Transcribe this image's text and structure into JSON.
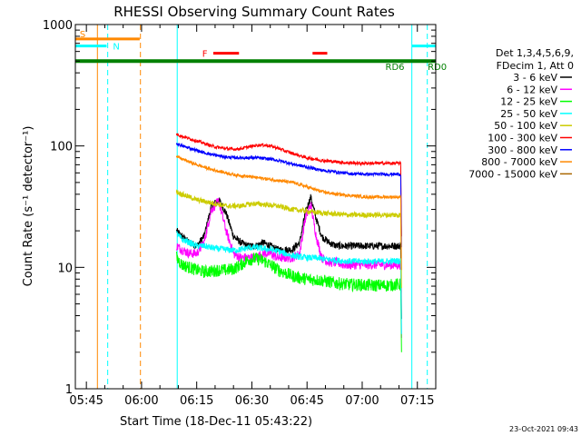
{
  "chart_data": {
    "type": "line",
    "title": "RHESSI Observing Summary Count Rates",
    "xlabel": "Start Time (18-Dec-11 05:43:22)",
    "ylabel": "Count Rate (s⁻¹ detector⁻¹)",
    "yscale": "log",
    "xlim_minutes": [
      342,
      440
    ],
    "ylim": [
      1,
      1000
    ],
    "x_ticks": [
      {
        "label": "05:45",
        "min": 345
      },
      {
        "label": "06:00",
        "min": 360
      },
      {
        "label": "06:15",
        "min": 375
      },
      {
        "label": "06:30",
        "min": 390
      },
      {
        "label": "06:45",
        "min": 405
      },
      {
        "label": "07:00",
        "min": 420
      },
      {
        "label": "07:15",
        "min": 435
      }
    ],
    "y_ticks": [
      {
        "label": "1",
        "value": 1
      },
      {
        "label": "10",
        "value": 10
      },
      {
        "label": "100",
        "value": 100
      },
      {
        "label": "1000",
        "value": 1000
      }
    ],
    "legend_title": [
      "Det 1,3,4,5,6,9,",
      "FDecim 1, Att 0"
    ],
    "legend_position": "right",
    "series": [
      {
        "name": "3 - 6 keV",
        "color": "#000000",
        "x": [
          369.5,
          371,
          373,
          375,
          377,
          379,
          381,
          383,
          385,
          387,
          389,
          391,
          393,
          395,
          397,
          399,
          401,
          403,
          404.5,
          406,
          407.5,
          409,
          411,
          413,
          415,
          417,
          419,
          421,
          423,
          425,
          427,
          429,
          430.5
        ],
        "y": [
          20,
          18,
          16,
          15,
          18,
          32,
          36,
          28,
          18,
          16,
          15,
          15,
          16,
          15,
          14,
          14,
          14,
          16,
          28,
          38,
          25,
          18,
          16,
          15,
          15,
          15,
          15,
          15,
          15,
          15,
          15,
          15,
          15
        ]
      },
      {
        "name": "6 - 12 keV",
        "color": "#ff00ff",
        "x": [
          369.5,
          371,
          373,
          375,
          377,
          379,
          381,
          383,
          385,
          387,
          389,
          391,
          393,
          395,
          397,
          399,
          401,
          403,
          404.5,
          406,
          407.5,
          409,
          411,
          413,
          415,
          417,
          419,
          421,
          423,
          425,
          427,
          429,
          430.5
        ],
        "y": [
          15,
          14,
          13,
          13,
          16,
          30,
          35,
          20,
          13,
          12,
          12,
          12,
          13,
          13,
          12,
          12,
          12,
          13,
          25,
          33,
          18,
          12,
          11,
          11,
          10.5,
          10.5,
          10.5,
          10.5,
          10.5,
          10.5,
          10.5,
          10.5,
          10.5
        ]
      },
      {
        "name": "12 - 25 keV",
        "color": "#00ff00",
        "x": [
          369.5,
          371,
          373,
          375,
          377,
          379,
          381,
          383,
          385,
          387,
          389,
          391,
          393,
          395,
          397,
          399,
          401,
          403,
          405,
          407,
          409,
          411,
          413,
          415,
          417,
          419,
          421,
          423,
          425,
          427,
          429,
          430.5
        ],
        "y": [
          12,
          10.5,
          10,
          9.5,
          9.2,
          9.3,
          9.5,
          9.5,
          9.7,
          10.5,
          11.5,
          11.8,
          11.4,
          10.5,
          9.6,
          9,
          8.5,
          8.2,
          8,
          7.9,
          7.8,
          7.6,
          7.4,
          7.3,
          7.2,
          7.2,
          7.1,
          7.1,
          7.1,
          7.1,
          7.2,
          7.2
        ]
      },
      {
        "name": "25 - 50 keV",
        "color": "#00ffff",
        "x": [
          369.5,
          371,
          373,
          375,
          377,
          379,
          381,
          383,
          385,
          387,
          389,
          391,
          393,
          395,
          397,
          399,
          401,
          403,
          405,
          407,
          409,
          411,
          413,
          415,
          417,
          419,
          421,
          423,
          425,
          427,
          429,
          430.5
        ],
        "y": [
          19,
          17,
          16,
          15,
          15,
          14.5,
          14.2,
          14,
          13.8,
          14,
          14.5,
          14.6,
          14.3,
          14,
          13.6,
          13,
          12.5,
          12.2,
          12,
          12,
          11.8,
          11.6,
          11.4,
          11.3,
          11.2,
          11.2,
          11.2,
          11.2,
          11.2,
          11.2,
          11.3,
          11.3
        ]
      },
      {
        "name": "50 - 100 keV",
        "color": "#cccc00",
        "x": [
          369.5,
          371,
          373,
          375,
          377,
          379,
          381,
          383,
          385,
          387,
          389,
          391,
          393,
          395,
          397,
          399,
          401,
          403,
          405,
          407,
          409,
          411,
          413,
          415,
          417,
          419,
          421,
          423,
          425,
          427,
          429,
          430.5
        ],
        "y": [
          42,
          40,
          38,
          36,
          35,
          34,
          33,
          32,
          32,
          32,
          33,
          33.5,
          33,
          32.5,
          32,
          31,
          30,
          29.5,
          29,
          28.5,
          28,
          27.8,
          27.5,
          27.2,
          27,
          27,
          27,
          27,
          27,
          27,
          27,
          27
        ]
      },
      {
        "name": "100 - 300 keV",
        "color": "#ff0000",
        "x": [
          369.5,
          371,
          373,
          375,
          377,
          379,
          381,
          383,
          385,
          387,
          389,
          391,
          393,
          395,
          397,
          399,
          401,
          403,
          405,
          407,
          409,
          411,
          413,
          415,
          417,
          419,
          421,
          423,
          425,
          427,
          429,
          430.5
        ],
        "y": [
          125,
          120,
          115,
          110,
          105,
          100,
          97,
          95,
          94,
          95,
          98,
          101,
          102,
          100,
          96,
          91,
          87,
          83,
          80,
          78,
          76,
          75,
          74,
          73,
          72.5,
          72,
          72,
          72,
          72,
          72,
          72,
          72
        ]
      },
      {
        "name": "300 - 800 keV",
        "color": "#0000ff",
        "x": [
          369.5,
          371,
          373,
          375,
          377,
          379,
          381,
          383,
          385,
          387,
          389,
          391,
          393,
          395,
          397,
          399,
          401,
          403,
          405,
          407,
          409,
          411,
          413,
          415,
          417,
          419,
          421,
          423,
          425,
          427,
          429,
          430.5
        ],
        "y": [
          105,
          100,
          96,
          92,
          88,
          85,
          83,
          81,
          80,
          80,
          80,
          80,
          79,
          78,
          76,
          74,
          71,
          69,
          67,
          65,
          63,
          62,
          61,
          60,
          59,
          59,
          58.5,
          58.5,
          58.5,
          58.5,
          58.5,
          58.5
        ]
      },
      {
        "name": "800 - 7000 keV",
        "color": "#ff8800",
        "x": [
          369.5,
          371,
          373,
          375,
          377,
          379,
          381,
          383,
          385,
          387,
          389,
          391,
          393,
          395,
          397,
          399,
          401,
          403,
          405,
          407,
          409,
          411,
          413,
          415,
          417,
          419,
          421,
          423,
          425,
          427,
          429,
          430.5
        ],
        "y": [
          82,
          78,
          74,
          70,
          67,
          64,
          62,
          60,
          58,
          57,
          56,
          55,
          54,
          53,
          52,
          51,
          50,
          48,
          46,
          44,
          42,
          41,
          40,
          39.5,
          39,
          38.5,
          38,
          38,
          38,
          38,
          38,
          38
        ]
      },
      {
        "name": "7000 - 15000 keV",
        "color": "#aa6600",
        "x": [],
        "y": []
      }
    ],
    "flags": [
      {
        "label": "S",
        "color": "#ff8800",
        "start_min": 342,
        "end_min": 359.5,
        "y": 760,
        "text_min": 343.2
      },
      {
        "label": "N",
        "color": "#00ffff",
        "start_min": 342,
        "end_min": 350.5,
        "y": 665,
        "text_min": 352.2
      },
      {
        "label": "N",
        "color": "#00ffff",
        "start_min": 433.5,
        "end_min": 440,
        "y": 665,
        "text_min": null
      },
      {
        "label": "F",
        "color": "#ff0000",
        "start_min": 379.5,
        "end_min": 386.5,
        "y": 580,
        "text_min": 376.5
      },
      {
        "label": "",
        "color": "#ff0000",
        "start_min": 406.5,
        "end_min": 410.5,
        "y": 580,
        "text_min": null
      },
      {
        "label": "RD6",
        "color": "#008000",
        "start_min": 342,
        "end_min": 440,
        "y": 500,
        "text_min": 426.3
      },
      {
        "label": "RD0",
        "color": "#008000",
        "start_min": 440,
        "end_min": 440,
        "y": 500,
        "text_min": 437.8
      }
    ],
    "vlines": [
      {
        "min": 348.0,
        "color": "#ff8800",
        "style": "solid"
      },
      {
        "min": 350.8,
        "color": "#00ffff",
        "style": "dashed"
      },
      {
        "min": 359.7,
        "color": "#ff8800",
        "style": "dashed"
      },
      {
        "min": 369.7,
        "color": "#00ffff",
        "style": "solid"
      },
      {
        "min": 433.5,
        "color": "#00ffff",
        "style": "solid"
      },
      {
        "min": 437.7,
        "color": "#00ffff",
        "style": "dashed"
      }
    ]
  },
  "footer": {
    "timestamp": "23-Oct-2021 09:43"
  }
}
